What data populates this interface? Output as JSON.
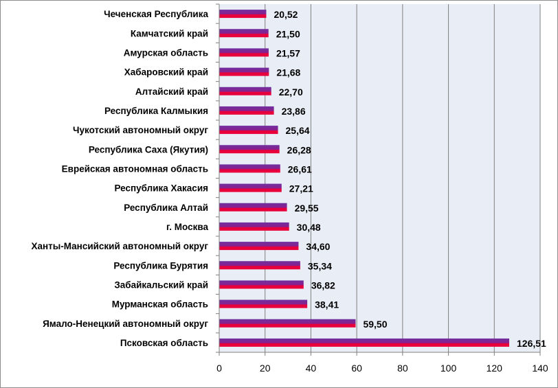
{
  "chart_data": {
    "type": "bar",
    "orientation": "horizontal",
    "categories": [
      "Чеченская Республика",
      "Камчатский край",
      "Амурская область",
      "Хабаровский край",
      "Алтайский край",
      "Республика Калмыкия",
      "Чукотский автономный округ",
      "Республика Саха (Якутия)",
      "Еврейская автономная область",
      "Республика Хакасия",
      "Республика Алтай",
      "г. Москва",
      "Ханты-Мансийский автономный округ",
      "Республика Бурятия",
      "Забайкальский край",
      "Мурманская область",
      "Ямало-Ненецкий автономный округ",
      "Псковская область"
    ],
    "values": [
      20.52,
      21.5,
      21.57,
      21.68,
      22.7,
      23.86,
      25.64,
      26.28,
      26.61,
      27.21,
      29.55,
      30.48,
      34.6,
      35.34,
      36.82,
      38.41,
      59.5,
      126.51
    ],
    "value_labels": [
      "20,52",
      "21,50",
      "21,57",
      "21,68",
      "22,70",
      "23,86",
      "25,64",
      "26,28",
      "26,61",
      "27,21",
      "29,55",
      "30,48",
      "34,60",
      "35,34",
      "36,82",
      "38,41",
      "59,50",
      "126,51"
    ],
    "xlim": [
      0,
      140
    ],
    "x_ticks": [
      "0",
      "20",
      "40",
      "60",
      "80",
      "100",
      "120",
      "140"
    ],
    "grid": true,
    "legend": "none",
    "title": "",
    "xlabel": "",
    "ylabel": "",
    "colors": {
      "bar_top": "#7030a0",
      "bar_mid": "#8b1e8c",
      "bar_bottom": "#e8003c",
      "plot_bg": "#e9edf5",
      "grid": "#7f7f7f",
      "axis": "#7f7f7f"
    }
  }
}
